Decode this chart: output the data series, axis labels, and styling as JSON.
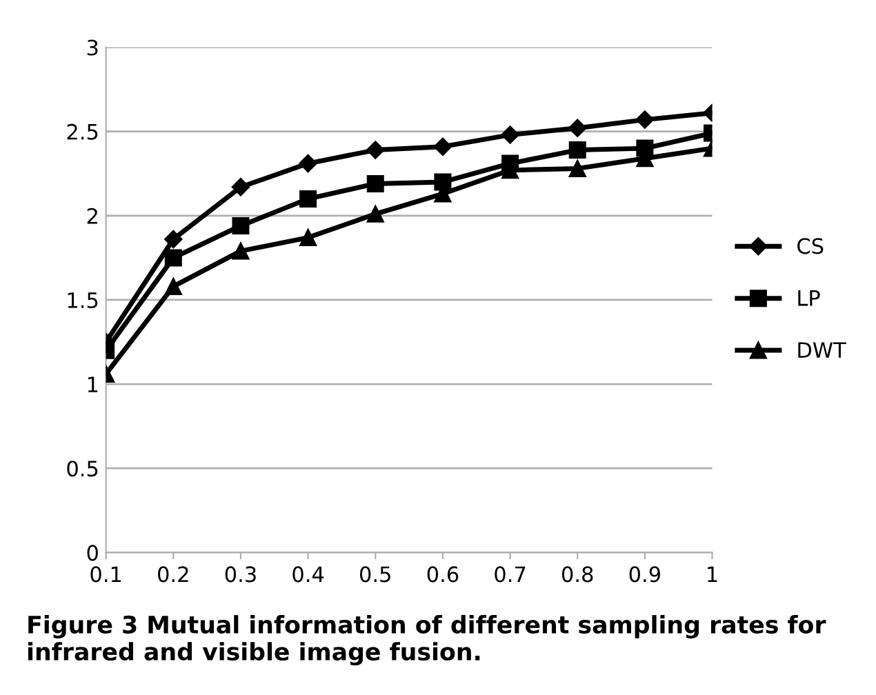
{
  "chart_data": {
    "type": "line",
    "categories": [
      "0.1",
      "0.2",
      "0.3",
      "0.4",
      "0.5",
      "0.6",
      "0.7",
      "0.8",
      "0.9",
      "1"
    ],
    "series": [
      {
        "name": "CS",
        "color": "#000000",
        "marker": "diamond",
        "values": [
          1.25,
          1.86,
          2.17,
          2.31,
          2.39,
          2.41,
          2.48,
          2.52,
          2.57,
          2.61
        ]
      },
      {
        "name": "LP",
        "color": "#000000",
        "marker": "square",
        "values": [
          1.2,
          1.75,
          1.94,
          2.1,
          2.19,
          2.2,
          2.31,
          2.39,
          2.4,
          2.49
        ]
      },
      {
        "name": "DWT",
        "color": "#000000",
        "marker": "triangle",
        "values": [
          1.06,
          1.58,
          1.79,
          1.87,
          2.01,
          2.13,
          2.27,
          2.28,
          2.34,
          2.4
        ]
      }
    ],
    "ylim": [
      0,
      3
    ],
    "yticks": [
      0,
      0.5,
      1,
      1.5,
      2,
      2.5,
      3
    ],
    "grid": "y",
    "legend": "right",
    "line_style": "solid",
    "annotations": [
      "Figure 3 Mutual information of different sampling rates for infrared and visible image fusion."
    ]
  }
}
